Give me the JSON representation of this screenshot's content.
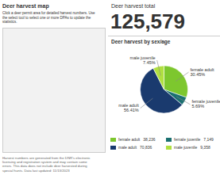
{
  "chart_data": {
    "type": "pie",
    "title": "Deer harvest by sex/age",
    "categories": [
      "female adult",
      "female juvenile",
      "male adult",
      "male juvenile"
    ],
    "values": [
      30.45,
      5.69,
      56.41,
      7.45
    ],
    "value_labels": [
      "30.45%",
      "5.69%",
      "56.41%",
      "7.45%"
    ],
    "colors": [
      "#7dc72e",
      "#1a7070",
      "#1a3a6e",
      "#b0e040"
    ],
    "counts": [
      {
        "value": 38236,
        "label": "38,236"
      },
      {
        "value": 7149,
        "label": "7,149"
      },
      {
        "value": 70836,
        "label": "70,836"
      },
      {
        "value": 9358,
        "label": "9,358"
      }
    ],
    "total": {
      "value": 125579,
      "label": "125,579"
    },
    "annotations": [
      "Deer harvest map",
      "Click a deer permit area for detailed harvest numbers. Use\nthe select tool to select one or more DPAs to update the\nstatistics.",
      "Harvest numbers are generated from the DNR's electronic\nlicensing and registration system and may contain some\nerrors. This data does not include deer harvested during\nspecial hunts. Data last updated: 11/13/2023",
      "Deer harvest total"
    ]
  }
}
